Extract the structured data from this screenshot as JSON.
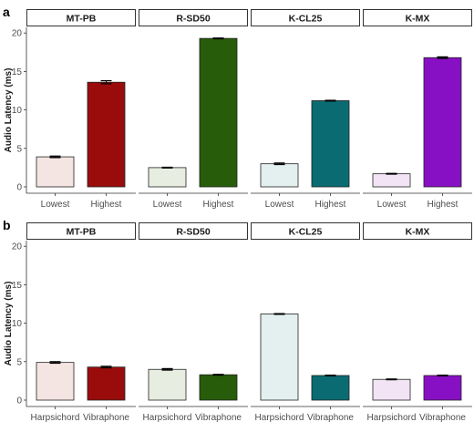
{
  "chart_data": [
    {
      "type": "bar",
      "panel_label": "a",
      "ylabel": "Audio Latency (ms)",
      "ylim": [
        0,
        20.5
      ],
      "yticks": [
        0,
        5,
        10,
        15,
        20
      ],
      "grid": false,
      "facets": [
        {
          "title": "MT-PB",
          "categories": [
            "Lowest",
            "Highest"
          ],
          "values": [
            3.9,
            13.6
          ],
          "errors": [
            0.1,
            0.2
          ],
          "colors": [
            "#f5e5e2",
            "#9a0c0c"
          ]
        },
        {
          "title": "R-SD50",
          "categories": [
            "Lowest",
            "Highest"
          ],
          "values": [
            2.5,
            19.3
          ],
          "errors": [
            0.05,
            0.05
          ],
          "colors": [
            "#e8ede2",
            "#275c0a"
          ]
        },
        {
          "title": "K-CL25",
          "categories": [
            "Lowest",
            "Highest"
          ],
          "values": [
            3.0,
            11.2
          ],
          "errors": [
            0.1,
            0.05
          ],
          "colors": [
            "#e4efef",
            "#0a6b72"
          ]
        },
        {
          "title": "K-MX",
          "categories": [
            "Lowest",
            "Highest"
          ],
          "values": [
            1.7,
            16.8
          ],
          "errors": [
            0.05,
            0.1
          ],
          "colors": [
            "#f2e4f5",
            "#8810c4"
          ]
        }
      ]
    },
    {
      "type": "bar",
      "panel_label": "b",
      "ylabel": "Audio Latency (ms)",
      "ylim": [
        0,
        20.5
      ],
      "yticks": [
        0,
        5,
        10,
        15,
        20
      ],
      "grid": false,
      "facets": [
        {
          "title": "MT-PB",
          "categories": [
            "Harpsichord",
            "Vibraphone"
          ],
          "values": [
            4.9,
            4.3
          ],
          "errors": [
            0.1,
            0.1
          ],
          "colors": [
            "#f5e5e2",
            "#9a0c0c"
          ]
        },
        {
          "title": "R-SD50",
          "categories": [
            "Harpsichord",
            "Vibraphone"
          ],
          "values": [
            4.0,
            3.3
          ],
          "errors": [
            0.1,
            0.05
          ],
          "colors": [
            "#e8ede2",
            "#275c0a"
          ]
        },
        {
          "title": "K-CL25",
          "categories": [
            "Harpsichord",
            "Vibraphone"
          ],
          "values": [
            11.2,
            3.2
          ],
          "errors": [
            0.05,
            0.05
          ],
          "colors": [
            "#e4efef",
            "#0a6b72"
          ]
        },
        {
          "title": "K-MX",
          "categories": [
            "Harpsichord",
            "Vibraphone"
          ],
          "values": [
            2.7,
            3.2
          ],
          "errors": [
            0.05,
            0.05
          ],
          "colors": [
            "#f2e4f5",
            "#8810c4"
          ]
        }
      ]
    }
  ]
}
